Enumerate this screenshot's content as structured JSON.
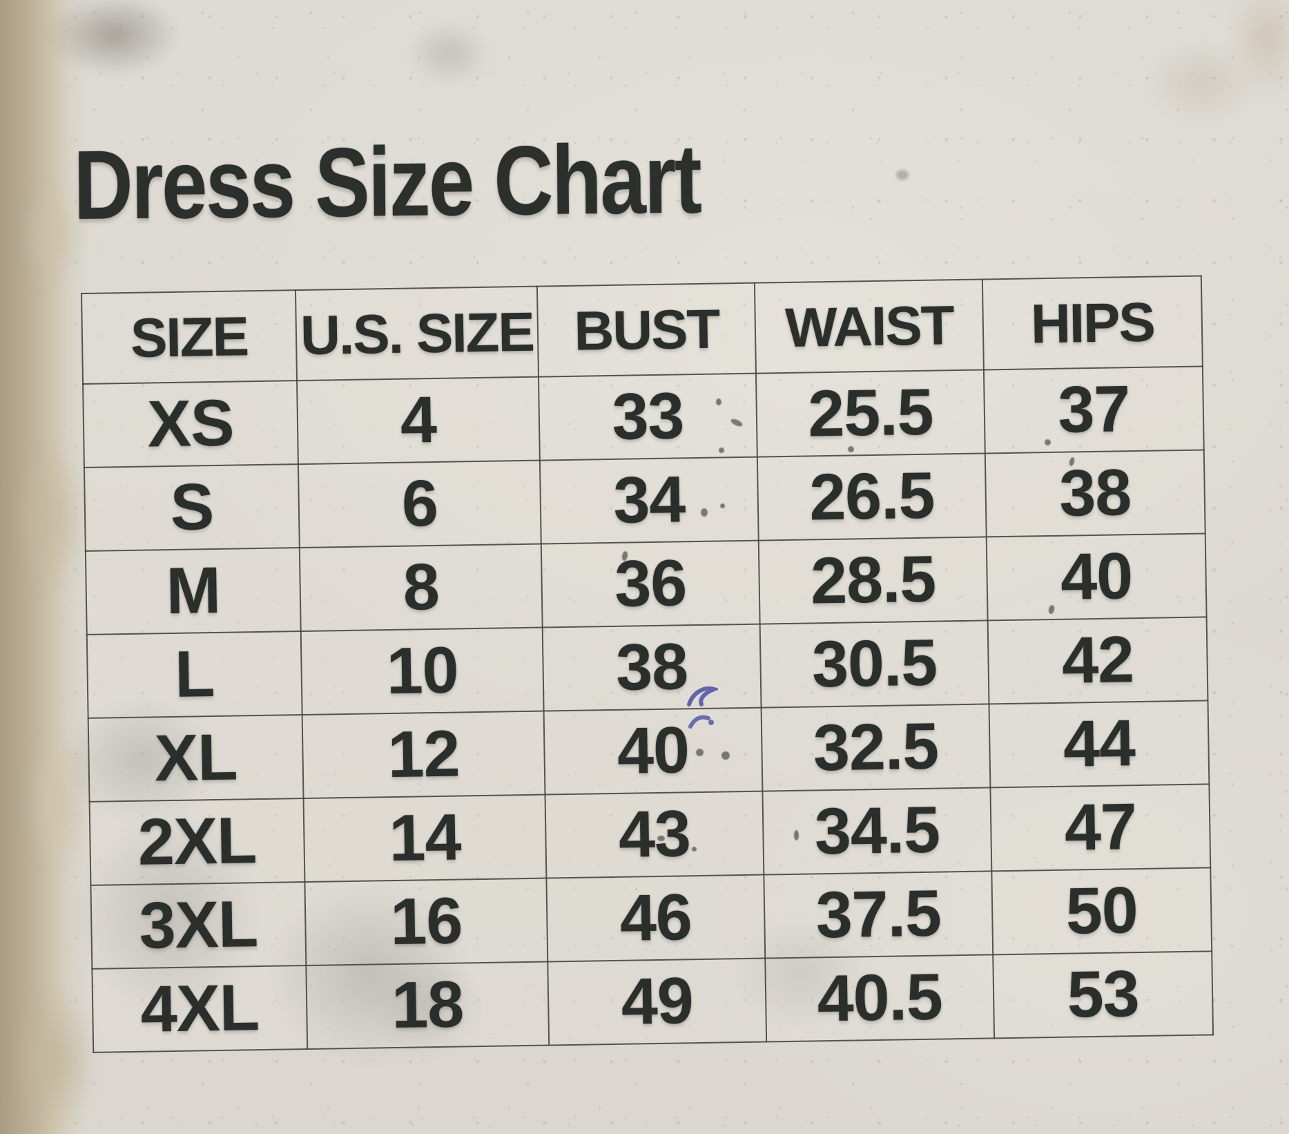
{
  "title": "Dress Size Chart",
  "chart_data": {
    "type": "table",
    "title": "Dress Size Chart",
    "columns": [
      "SIZE",
      "U.S. SIZE",
      "BUST",
      "WAIST",
      "HIPS"
    ],
    "rows": [
      [
        "XS",
        "4",
        "33",
        "25.5",
        "37"
      ],
      [
        "S",
        "6",
        "34",
        "26.5",
        "38"
      ],
      [
        "M",
        "8",
        "36",
        "28.5",
        "40"
      ],
      [
        "L",
        "10",
        "38",
        "30.5",
        "42"
      ],
      [
        "XL",
        "12",
        "40",
        "32.5",
        "44"
      ],
      [
        "2XL",
        "14",
        "43",
        "34.5",
        "47"
      ],
      [
        "3XL",
        "16",
        "46",
        "37.5",
        "50"
      ],
      [
        "4XL",
        "18",
        "49",
        "40.5",
        "53"
      ]
    ]
  },
  "colors": {
    "card_background": "#dedbd4",
    "left_edge_tan": "#b5a88f",
    "text": "#2b2f2c",
    "table_line": "#40423a",
    "ink_blue": "#4b50a6"
  }
}
